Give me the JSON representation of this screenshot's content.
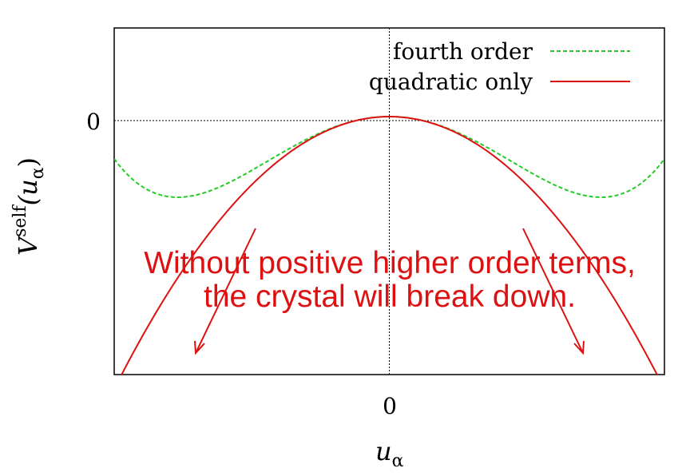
{
  "chart_data": {
    "type": "line",
    "xlabel": "u",
    "xlabel_sub": "α",
    "ylabel_base": "V",
    "ylabel_sup": "self",
    "ylabel_arg": "(u",
    "ylabel_arg_sub": "α",
    "ylabel_close": ")",
    "x_ticks": [
      "0"
    ],
    "y_ticks": [
      "0"
    ],
    "xlim": [
      -1.3,
      1.3
    ],
    "ylim": [
      -1.6,
      0.55
    ],
    "grid": false,
    "zero_axes": true,
    "legend_position": "top-right",
    "series": [
      {
        "name": "fourth order",
        "style": "dashed",
        "color": "#22cc22",
        "formula": "-x^2 + 0.5 x^4",
        "x": [
          -1.2,
          -1.1,
          -1.0,
          -0.9,
          -0.8,
          -0.6,
          -0.4,
          -0.2,
          0,
          0.2,
          0.4,
          0.6,
          0.8,
          0.9,
          1.0,
          1.1,
          1.2
        ],
        "y": [
          -0.404,
          -0.478,
          -0.5,
          -0.482,
          -0.435,
          -0.295,
          -0.147,
          -0.039,
          0,
          -0.039,
          -0.147,
          -0.295,
          -0.435,
          -0.482,
          -0.5,
          -0.478,
          -0.404
        ]
      },
      {
        "name": "quadratic only",
        "style": "solid",
        "color": "#dd1111",
        "formula": "-x^2",
        "x": [
          -1.3,
          -1.0,
          -0.6,
          -0.3,
          0,
          0.3,
          0.6,
          1.0,
          1.3
        ],
        "y": [
          -1.69,
          -1.0,
          -0.36,
          -0.09,
          0,
          -0.09,
          -0.36,
          -1.0,
          -1.69
        ]
      }
    ],
    "annotation": {
      "line1": "Without positive higher order terms,",
      "line2": "the crystal will break down.",
      "color": "#dd1111"
    }
  }
}
